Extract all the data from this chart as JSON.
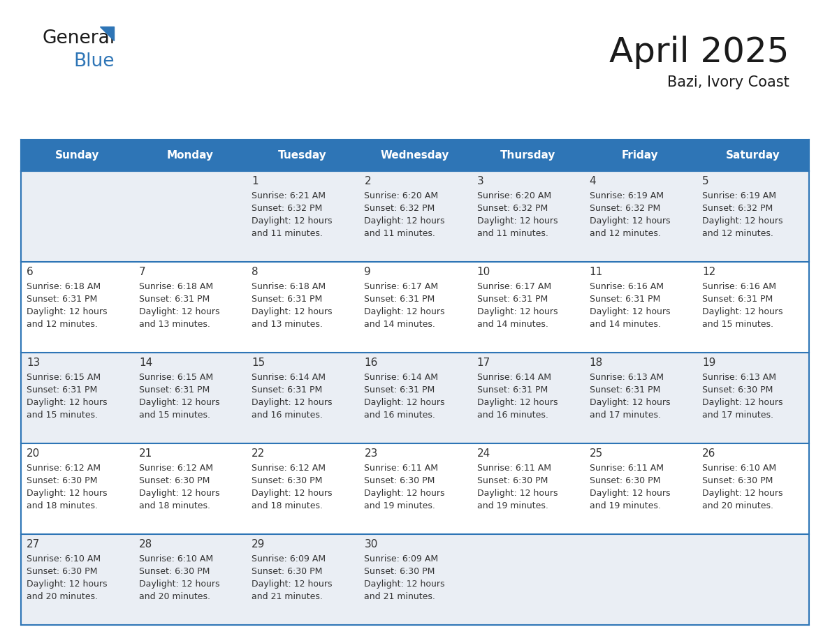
{
  "title": "April 2025",
  "subtitle": "Bazi, Ivory Coast",
  "days_of_week": [
    "Sunday",
    "Monday",
    "Tuesday",
    "Wednesday",
    "Thursday",
    "Friday",
    "Saturday"
  ],
  "header_bg": "#2E75B6",
  "header_text": "#FFFFFF",
  "row_bg_even": "#FFFFFF",
  "row_bg_odd": "#EAEEF4",
  "border_color": "#2E75B6",
  "day_number_color": "#333333",
  "cell_text_color": "#333333",
  "calendar_data": [
    [
      null,
      null,
      {
        "day": "1",
        "sunrise": "6:21 AM",
        "sunset": "6:32 PM",
        "daylight_h": "12 hours",
        "daylight_m": "and 11 minutes."
      },
      {
        "day": "2",
        "sunrise": "6:20 AM",
        "sunset": "6:32 PM",
        "daylight_h": "12 hours",
        "daylight_m": "and 11 minutes."
      },
      {
        "day": "3",
        "sunrise": "6:20 AM",
        "sunset": "6:32 PM",
        "daylight_h": "12 hours",
        "daylight_m": "and 11 minutes."
      },
      {
        "day": "4",
        "sunrise": "6:19 AM",
        "sunset": "6:32 PM",
        "daylight_h": "12 hours",
        "daylight_m": "and 12 minutes."
      },
      {
        "day": "5",
        "sunrise": "6:19 AM",
        "sunset": "6:32 PM",
        "daylight_h": "12 hours",
        "daylight_m": "and 12 minutes."
      }
    ],
    [
      {
        "day": "6",
        "sunrise": "6:18 AM",
        "sunset": "6:31 PM",
        "daylight_h": "12 hours",
        "daylight_m": "and 12 minutes."
      },
      {
        "day": "7",
        "sunrise": "6:18 AM",
        "sunset": "6:31 PM",
        "daylight_h": "12 hours",
        "daylight_m": "and 13 minutes."
      },
      {
        "day": "8",
        "sunrise": "6:18 AM",
        "sunset": "6:31 PM",
        "daylight_h": "12 hours",
        "daylight_m": "and 13 minutes."
      },
      {
        "day": "9",
        "sunrise": "6:17 AM",
        "sunset": "6:31 PM",
        "daylight_h": "12 hours",
        "daylight_m": "and 14 minutes."
      },
      {
        "day": "10",
        "sunrise": "6:17 AM",
        "sunset": "6:31 PM",
        "daylight_h": "12 hours",
        "daylight_m": "and 14 minutes."
      },
      {
        "day": "11",
        "sunrise": "6:16 AM",
        "sunset": "6:31 PM",
        "daylight_h": "12 hours",
        "daylight_m": "and 14 minutes."
      },
      {
        "day": "12",
        "sunrise": "6:16 AM",
        "sunset": "6:31 PM",
        "daylight_h": "12 hours",
        "daylight_m": "and 15 minutes."
      }
    ],
    [
      {
        "day": "13",
        "sunrise": "6:15 AM",
        "sunset": "6:31 PM",
        "daylight_h": "12 hours",
        "daylight_m": "and 15 minutes."
      },
      {
        "day": "14",
        "sunrise": "6:15 AM",
        "sunset": "6:31 PM",
        "daylight_h": "12 hours",
        "daylight_m": "and 15 minutes."
      },
      {
        "day": "15",
        "sunrise": "6:14 AM",
        "sunset": "6:31 PM",
        "daylight_h": "12 hours",
        "daylight_m": "and 16 minutes."
      },
      {
        "day": "16",
        "sunrise": "6:14 AM",
        "sunset": "6:31 PM",
        "daylight_h": "12 hours",
        "daylight_m": "and 16 minutes."
      },
      {
        "day": "17",
        "sunrise": "6:14 AM",
        "sunset": "6:31 PM",
        "daylight_h": "12 hours",
        "daylight_m": "and 16 minutes."
      },
      {
        "day": "18",
        "sunrise": "6:13 AM",
        "sunset": "6:31 PM",
        "daylight_h": "12 hours",
        "daylight_m": "and 17 minutes."
      },
      {
        "day": "19",
        "sunrise": "6:13 AM",
        "sunset": "6:30 PM",
        "daylight_h": "12 hours",
        "daylight_m": "and 17 minutes."
      }
    ],
    [
      {
        "day": "20",
        "sunrise": "6:12 AM",
        "sunset": "6:30 PM",
        "daylight_h": "12 hours",
        "daylight_m": "and 18 minutes."
      },
      {
        "day": "21",
        "sunrise": "6:12 AM",
        "sunset": "6:30 PM",
        "daylight_h": "12 hours",
        "daylight_m": "and 18 minutes."
      },
      {
        "day": "22",
        "sunrise": "6:12 AM",
        "sunset": "6:30 PM",
        "daylight_h": "12 hours",
        "daylight_m": "and 18 minutes."
      },
      {
        "day": "23",
        "sunrise": "6:11 AM",
        "sunset": "6:30 PM",
        "daylight_h": "12 hours",
        "daylight_m": "and 19 minutes."
      },
      {
        "day": "24",
        "sunrise": "6:11 AM",
        "sunset": "6:30 PM",
        "daylight_h": "12 hours",
        "daylight_m": "and 19 minutes."
      },
      {
        "day": "25",
        "sunrise": "6:11 AM",
        "sunset": "6:30 PM",
        "daylight_h": "12 hours",
        "daylight_m": "and 19 minutes."
      },
      {
        "day": "26",
        "sunrise": "6:10 AM",
        "sunset": "6:30 PM",
        "daylight_h": "12 hours",
        "daylight_m": "and 20 minutes."
      }
    ],
    [
      {
        "day": "27",
        "sunrise": "6:10 AM",
        "sunset": "6:30 PM",
        "daylight_h": "12 hours",
        "daylight_m": "and 20 minutes."
      },
      {
        "day": "28",
        "sunrise": "6:10 AM",
        "sunset": "6:30 PM",
        "daylight_h": "12 hours",
        "daylight_m": "and 20 minutes."
      },
      {
        "day": "29",
        "sunrise": "6:09 AM",
        "sunset": "6:30 PM",
        "daylight_h": "12 hours",
        "daylight_m": "and 21 minutes."
      },
      {
        "day": "30",
        "sunrise": "6:09 AM",
        "sunset": "6:30 PM",
        "daylight_h": "12 hours",
        "daylight_m": "and 21 minutes."
      },
      null,
      null,
      null
    ]
  ]
}
